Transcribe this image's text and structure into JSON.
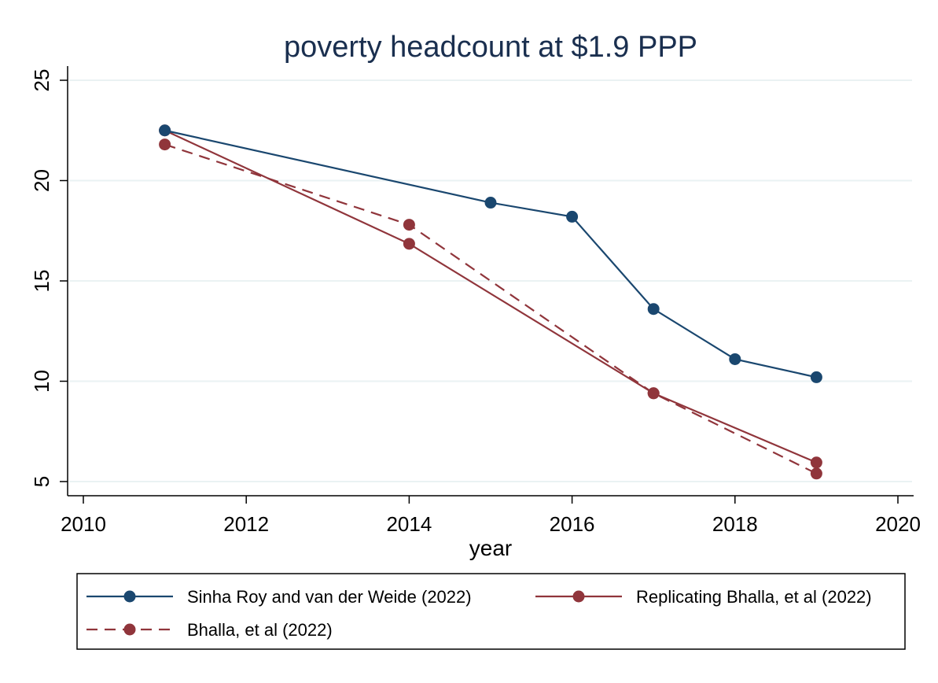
{
  "chart_data": {
    "type": "line",
    "title": "poverty headcount at $1.9 PPP",
    "xlabel": "year",
    "ylabel": "",
    "xlim": [
      2010,
      2020
    ],
    "ylim": [
      5,
      25
    ],
    "x_ticks": [
      2010,
      2012,
      2014,
      2016,
      2018,
      2020
    ],
    "y_ticks": [
      5,
      10,
      15,
      20,
      25
    ],
    "grid": "horizontal",
    "legend_position": "bottom",
    "series": [
      {
        "name": "Sinha Roy and van der Weide (2022)",
        "color": "#1a476f",
        "line_style": "solid",
        "x": [
          2011,
          2015,
          2016,
          2017,
          2018,
          2019
        ],
        "y": [
          22.5,
          18.9,
          18.2,
          13.6,
          11.1,
          10.2
        ]
      },
      {
        "name": "Replicating Bhalla, et al (2022)",
        "color": "#90353b",
        "line_style": "solid",
        "x": [
          2011,
          2014,
          2017,
          2019
        ],
        "y": [
          22.5,
          16.85,
          9.4,
          5.95
        ]
      },
      {
        "name": "Bhalla, et al (2022)",
        "color": "#90353b",
        "line_style": "dashed",
        "x": [
          2011,
          2014,
          2017,
          2019
        ],
        "y": [
          21.8,
          17.8,
          9.4,
          5.4
        ]
      }
    ]
  }
}
